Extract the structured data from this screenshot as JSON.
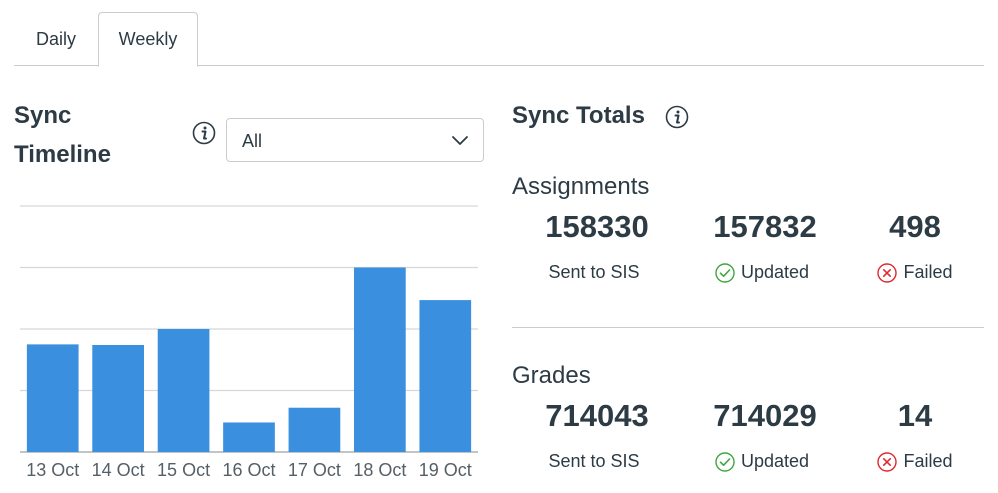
{
  "tabs": [
    {
      "label": "Daily",
      "active": false
    },
    {
      "label": "Weekly",
      "active": true
    }
  ],
  "timeline": {
    "title_line1": "Sync",
    "title_line2": "Timeline",
    "filter_selected": "All"
  },
  "chart_data": {
    "type": "bar",
    "categories": [
      "13 Oct",
      "14 Oct",
      "15 Oct",
      "16 Oct",
      "17 Oct",
      "18 Oct",
      "19 Oct"
    ],
    "values": [
      1.75,
      1.74,
      2.0,
      0.48,
      0.72,
      3.0,
      2.47
    ],
    "ylim": [
      0,
      4
    ],
    "grid": true,
    "color": "#3a8fde",
    "title": "",
    "xlabel": "",
    "ylabel": ""
  },
  "totals": {
    "title": "Sync Totals",
    "sections": [
      {
        "title": "Assignments",
        "sent": "158330",
        "updated": "157832",
        "failed": "498",
        "sent_label": "Sent to SIS",
        "updated_label": "Updated",
        "failed_label": "Failed"
      },
      {
        "title": "Grades",
        "sent": "714043",
        "updated": "714029",
        "failed": "14",
        "sent_label": "Sent to SIS",
        "updated_label": "Updated",
        "failed_label": "Failed"
      }
    ]
  },
  "colors": {
    "success": "#3fa53f",
    "danger": "#e0282f",
    "bar": "#3a8fde"
  },
  "icons": {
    "info": "info-icon",
    "chevron": "chevron-down-icon",
    "updated": "check-circle-icon",
    "failed": "x-circle-icon"
  }
}
